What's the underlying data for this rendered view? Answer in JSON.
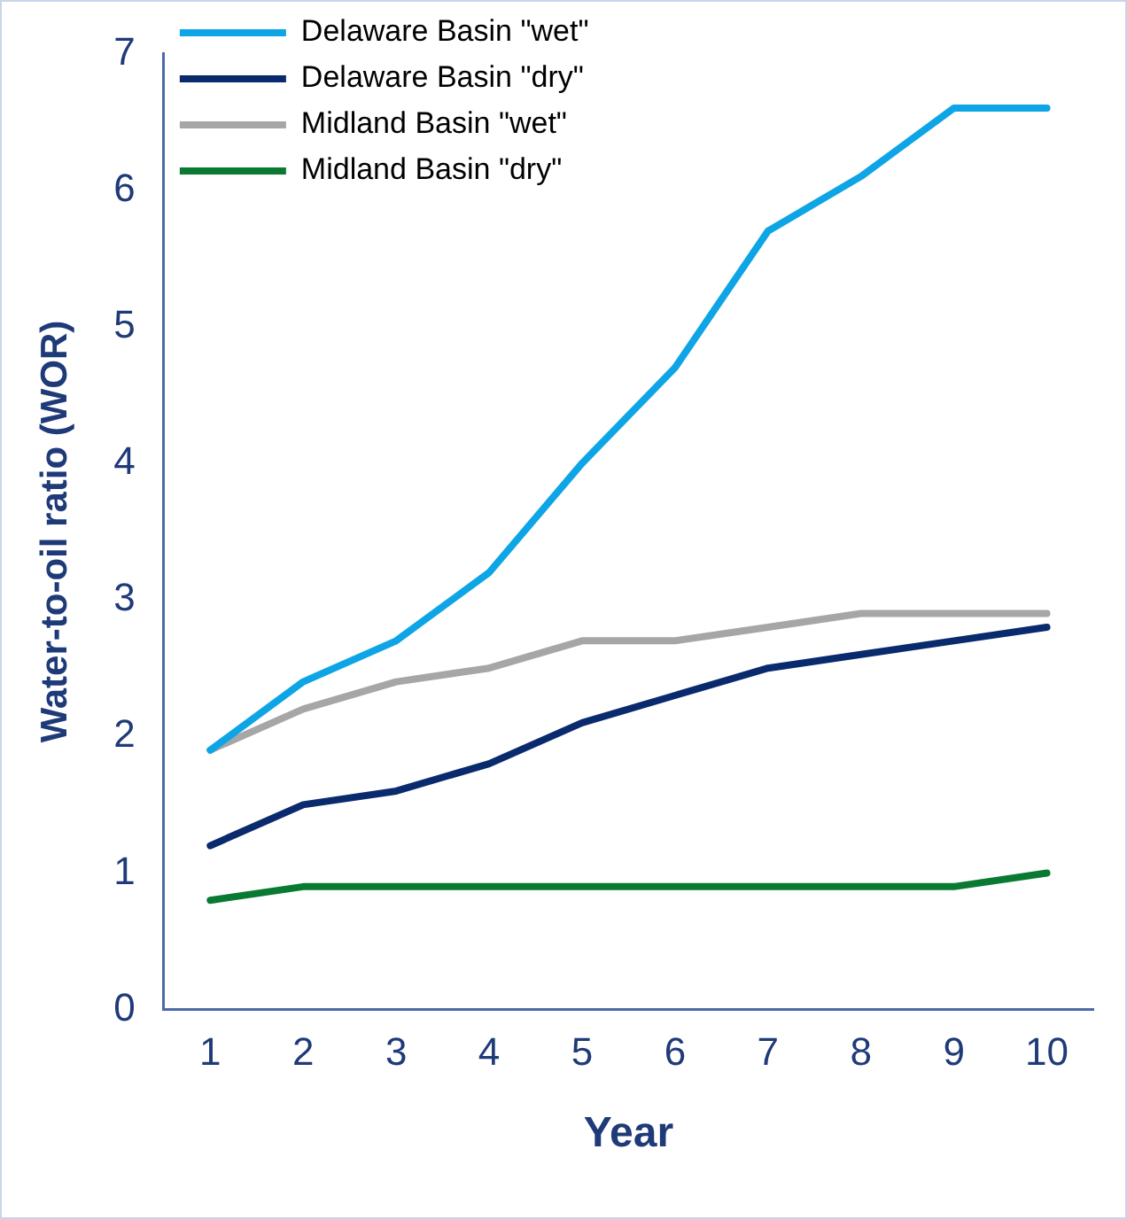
{
  "chart_data": {
    "type": "line",
    "xlabel": "Year",
    "ylabel": "Water-to-oil ratio (WOR)",
    "categories": [
      "1",
      "2",
      "3",
      "4",
      "5",
      "6",
      "7",
      "8",
      "9",
      "10"
    ],
    "series": [
      {
        "name": "Delaware Basin \"wet\"",
        "color": "#0ea5e6",
        "values": [
          1.9,
          2.4,
          2.7,
          3.2,
          4.0,
          4.7,
          5.7,
          6.1,
          6.6,
          6.6
        ]
      },
      {
        "name": "Delaware Basin \"dry\"",
        "color": "#0a2a6e",
        "values": [
          1.2,
          1.5,
          1.6,
          1.8,
          2.1,
          2.3,
          2.5,
          2.6,
          2.7,
          2.8
        ]
      },
      {
        "name": "Midland Basin \"wet\"",
        "color": "#a6a6a6",
        "values": [
          1.9,
          2.2,
          2.4,
          2.5,
          2.7,
          2.7,
          2.8,
          2.9,
          2.9,
          2.9
        ]
      },
      {
        "name": "Midland Basin \"dry\"",
        "color": "#0a7a32",
        "values": [
          0.8,
          0.9,
          0.9,
          0.9,
          0.9,
          0.9,
          0.9,
          0.9,
          0.9,
          1.0
        ]
      }
    ],
    "ylim": [
      0,
      7
    ],
    "yticks": [
      0,
      1,
      2,
      3,
      4,
      5,
      6,
      7
    ],
    "grid": false,
    "legend": "top left",
    "marker": "none",
    "line_style": "solid"
  }
}
